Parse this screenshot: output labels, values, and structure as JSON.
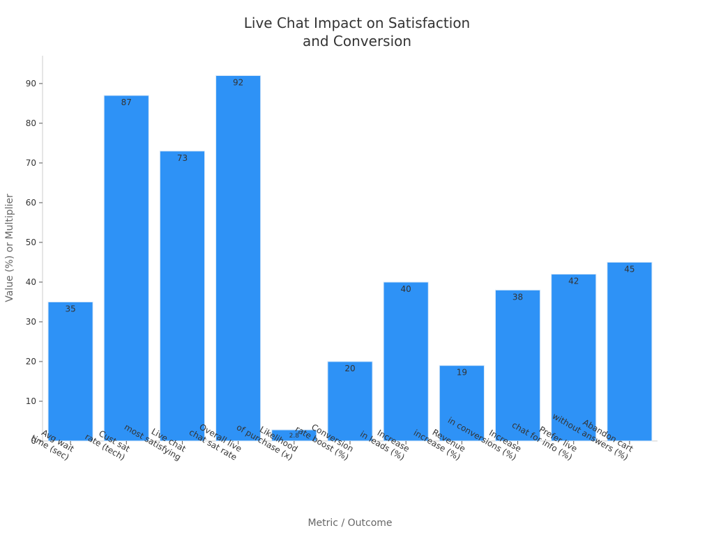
{
  "chart_data": {
    "type": "bar",
    "title": [
      "Live Chat Impact on Satisfaction",
      "and Conversion"
    ],
    "xlabel": "Metric / Outcome",
    "ylabel": "Value (%) or Multiplier",
    "ylim": [
      0,
      97
    ],
    "yticks": [
      0,
      10,
      20,
      30,
      40,
      50,
      60,
      70,
      80,
      90
    ],
    "grid": false,
    "bar_color": "#2E92F6",
    "categories": [
      [
        "Avg wait",
        "time (sec)"
      ],
      [
        "Cust sat",
        "rate (tech)"
      ],
      [
        "Live chat",
        "most satisfying"
      ],
      [
        "Overall live",
        "chat sat rate"
      ],
      [
        "Likelihood",
        "of purchase (x)"
      ],
      [
        "Conversion",
        "rate boost (%)"
      ],
      [
        "Increase",
        "in leads (%)"
      ],
      [
        "Revenue",
        "increase (%)"
      ],
      [
        "Increase",
        "in conversions (%)"
      ],
      [
        "Prefer live",
        "chat for info (%)"
      ],
      [
        "Abandon cart",
        "without answers (%)"
      ]
    ],
    "values": [
      35,
      87,
      73,
      92,
      2.8,
      20,
      40,
      19,
      38,
      42,
      45
    ]
  }
}
